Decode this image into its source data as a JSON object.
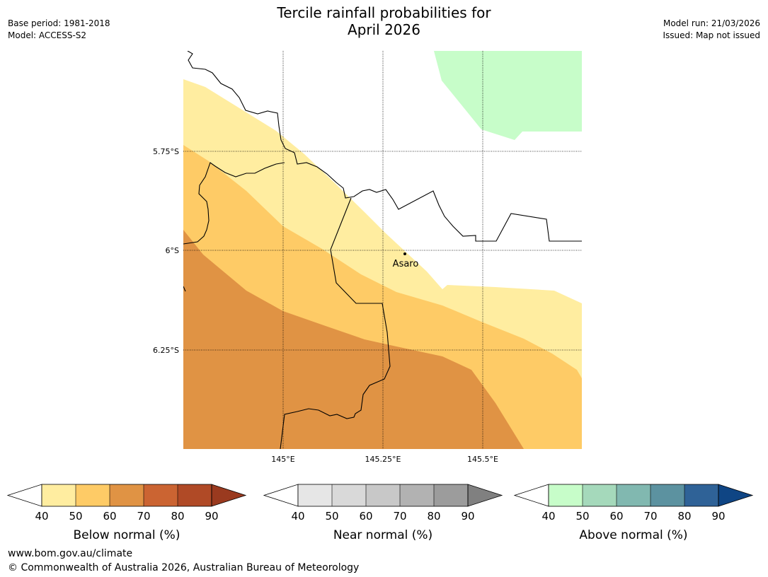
{
  "header": {
    "title_line1": "Tercile rainfall probabilities for",
    "title_line2": "April 2026",
    "base_period": "Base period: 1981-2018",
    "model": "Model: ACCESS-S2",
    "model_run": "Model run: 21/03/2026",
    "issued": "Issued: Map not issued"
  },
  "map": {
    "lat_labels": [
      "5.75°S",
      "6°S",
      "6.25°S"
    ],
    "lon_labels": [
      "145°E",
      "145.25°E",
      "145.5°E"
    ],
    "place": {
      "name": "Asaro"
    }
  },
  "colors": {
    "below": [
      "#ffeda0",
      "#fecb66",
      "#e09344",
      "#cb6432",
      "#b04a26",
      "#9a3a1f"
    ],
    "near": [
      "#e6e6e6",
      "#d9d9d9",
      "#c8c8c8",
      "#b2b2b2",
      "#9c9c9c",
      "#808080"
    ],
    "above": [
      "#c7fdc9",
      "#a5d9bb",
      "#81b8b0",
      "#5c92a0",
      "#2f6297",
      "#0f4584"
    ]
  },
  "legends": [
    {
      "label": "Below normal (%)",
      "ticks": [
        "40",
        "50",
        "60",
        "70",
        "80",
        "90"
      ]
    },
    {
      "label": "Near normal (%)",
      "ticks": [
        "40",
        "50",
        "60",
        "70",
        "80",
        "90"
      ]
    },
    {
      "label": "Above normal (%)",
      "ticks": [
        "40",
        "50",
        "60",
        "70",
        "80",
        "90"
      ]
    }
  ],
  "footer": {
    "url": "www.bom.gov.au/climate",
    "copyright": "© Commonwealth of Australia 2026, Australian Bureau of Meteorology"
  }
}
